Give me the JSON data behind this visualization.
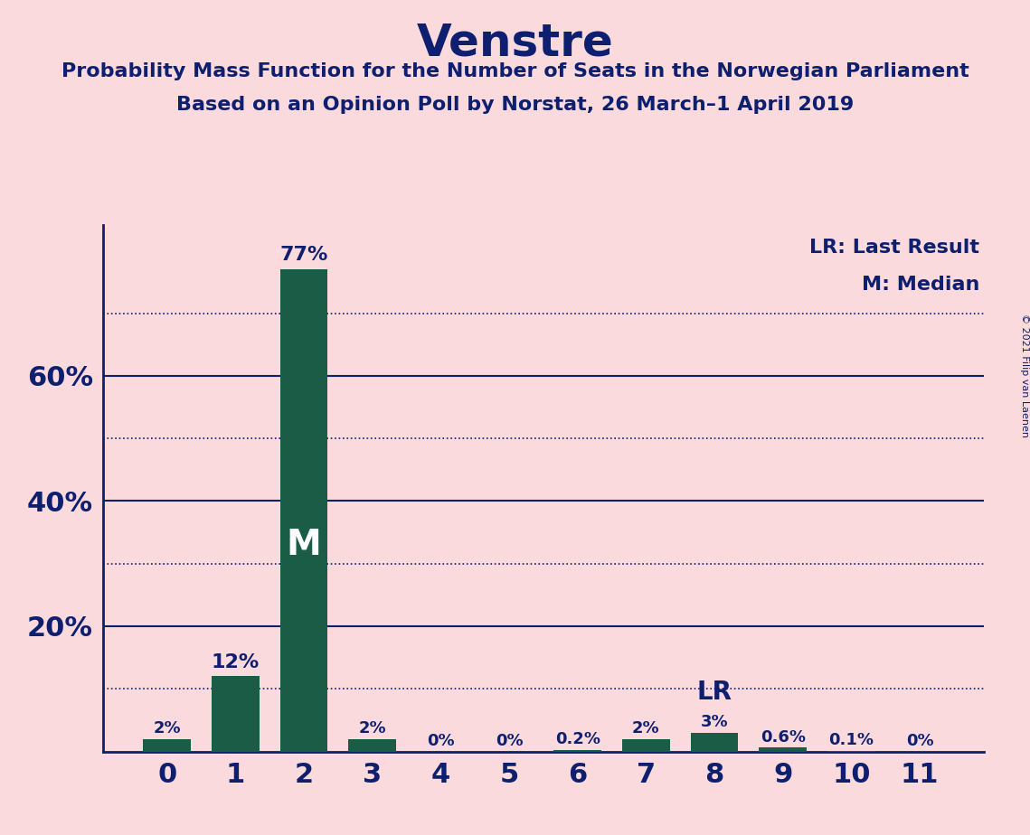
{
  "title": "Venstre",
  "subtitle1": "Probability Mass Function for the Number of Seats in the Norwegian Parliament",
  "subtitle2": "Based on an Opinion Poll by Norstat, 26 March–1 April 2019",
  "copyright": "© 2021 Filip van Laenen",
  "categories": [
    0,
    1,
    2,
    3,
    4,
    5,
    6,
    7,
    8,
    9,
    10,
    11
  ],
  "values": [
    2,
    12,
    77,
    2,
    0,
    0,
    0.2,
    2,
    3,
    0.6,
    0.1,
    0
  ],
  "bar_labels": [
    "2%",
    "12%",
    "77%",
    "2%",
    "0%",
    "0%",
    "0.2%",
    "2%",
    "3%",
    "0.6%",
    "0.1%",
    "0%"
  ],
  "bar_color": "#1a5c45",
  "background_color": "#fadadd",
  "text_color": "#0d1f6e",
  "median_bar": 2,
  "lr_bar": 8,
  "solid_lines": [
    20,
    40,
    60
  ],
  "dotted_lines": [
    10,
    30,
    50,
    70
  ],
  "ytick_positions": [
    20,
    40,
    60
  ],
  "ytick_labels": [
    "20%",
    "40%",
    "60%"
  ],
  "ymax": 84,
  "legend_lr": "LR: Last Result",
  "legend_m": "M: Median"
}
